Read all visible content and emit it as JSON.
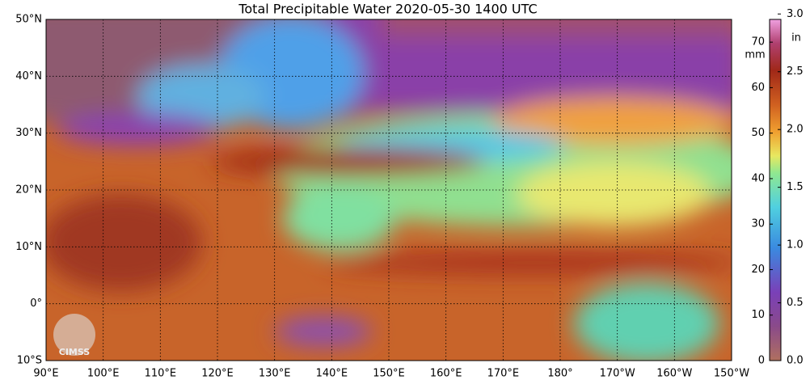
{
  "title": "Total Precipitable Water  2020-05-30 1400 UTC",
  "map": {
    "latlim": [
      -10,
      50
    ],
    "lonlim": [
      90,
      210
    ],
    "lat_ticks": [
      {
        "value": 50,
        "label": "50°N"
      },
      {
        "value": 40,
        "label": "40°N"
      },
      {
        "value": 30,
        "label": "30°N"
      },
      {
        "value": 20,
        "label": "20°N"
      },
      {
        "value": 10,
        "label": "10°N"
      },
      {
        "value": 0,
        "label": "0°"
      },
      {
        "value": -10,
        "label": "10°S"
      }
    ],
    "lon_ticks": [
      {
        "value": 90,
        "label": "90°E"
      },
      {
        "value": 100,
        "label": "100°E"
      },
      {
        "value": 110,
        "label": "110°E"
      },
      {
        "value": 120,
        "label": "120°E"
      },
      {
        "value": 130,
        "label": "130°E"
      },
      {
        "value": 140,
        "label": "140°E"
      },
      {
        "value": 150,
        "label": "150°E"
      },
      {
        "value": 160,
        "label": "160°E"
      },
      {
        "value": 170,
        "label": "170°E"
      },
      {
        "value": 180,
        "label": "180°"
      },
      {
        "value": 190,
        "label": "170°W"
      },
      {
        "value": 200,
        "label": "160°W"
      },
      {
        "value": 210,
        "label": "150°W"
      }
    ],
    "logo": "CIMSS"
  },
  "colorbar": {
    "mm_unit": "mm",
    "in_unit": "in",
    "mm_lim": [
      0,
      75
    ],
    "mm_ticks": [
      0,
      10,
      20,
      30,
      40,
      50,
      60,
      70
    ],
    "in_lim": [
      0,
      2.953
    ],
    "in_ticks": [
      {
        "value": 0,
        "label": "0.0"
      },
      {
        "value": 0.5,
        "label": "0.5"
      },
      {
        "value": 1,
        "label": "1.0"
      },
      {
        "value": 1.5,
        "label": "1.5"
      },
      {
        "value": 2,
        "label": "2.0"
      },
      {
        "value": 2.5,
        "label": "2.5"
      },
      {
        "value": 3,
        "label": "3.0"
      }
    ]
  }
}
